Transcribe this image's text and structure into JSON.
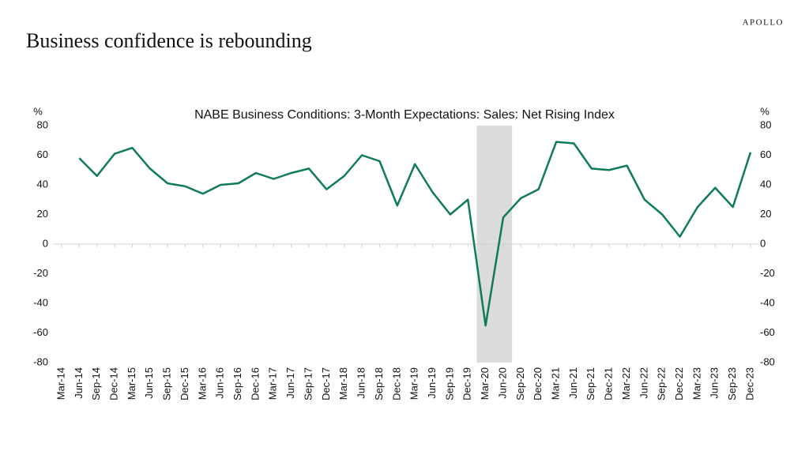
{
  "brand": "APOLLO",
  "chart_data": {
    "type": "line",
    "title": "Business confidence is rebounding",
    "subtitle": "NABE Business Conditions: 3-Month Expectations: Sales: Net Rising Index",
    "ylabel": "%",
    "y2label": "%",
    "categories": [
      "Mar-14",
      "Jun-14",
      "Sep-14",
      "Dec-14",
      "Mar-15",
      "Jun-15",
      "Sep-15",
      "Dec-15",
      "Mar-16",
      "Jun-16",
      "Sep-16",
      "Dec-16",
      "Mar-17",
      "Jun-17",
      "Sep-17",
      "Dec-17",
      "Mar-18",
      "Jun-18",
      "Sep-18",
      "Dec-18",
      "Mar-19",
      "Jun-19",
      "Sep-19",
      "Dec-19",
      "Mar-20",
      "Jun-20",
      "Sep-20",
      "Dec-20",
      "Mar-21",
      "Jun-21",
      "Sep-21",
      "Dec-21",
      "Mar-22",
      "Jun-22",
      "Sep-22",
      "Dec-22",
      "Mar-23",
      "Jun-23",
      "Sep-23",
      "Dec-23"
    ],
    "series": [
      {
        "color": "#107a5c",
        "values": [
          null,
          58,
          46,
          61,
          65,
          51,
          41,
          39,
          34,
          40,
          41,
          48,
          44,
          48,
          51,
          37,
          46,
          60,
          56,
          26,
          54,
          35,
          20,
          30,
          -55,
          18,
          31,
          37,
          69,
          68,
          51,
          50,
          53,
          30,
          20,
          5,
          25,
          38,
          25,
          62
        ]
      }
    ],
    "shaded": {
      "from": "Mar-20",
      "to": "Jun-20",
      "color": "#dcdcdc"
    },
    "ylim": [
      -80,
      80
    ],
    "yticks": [
      -80,
      -60,
      -40,
      -20,
      0,
      20,
      40,
      60,
      80
    ],
    "y2lim": [
      -80,
      80
    ],
    "y2ticks": [
      -80,
      -60,
      -40,
      -20,
      0,
      20,
      40,
      60,
      80
    ]
  }
}
